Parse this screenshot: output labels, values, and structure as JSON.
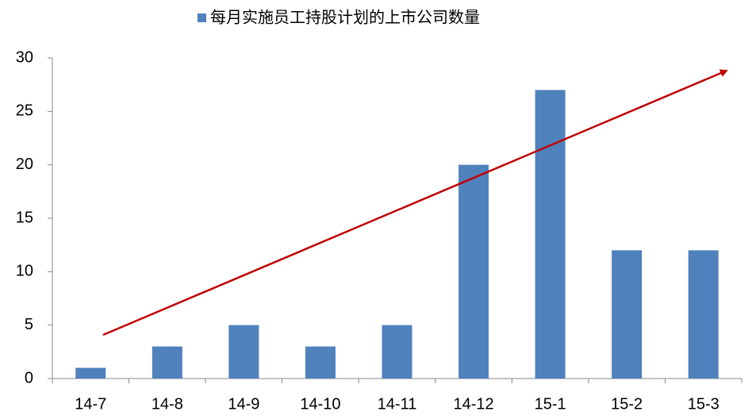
{
  "chart_data": {
    "type": "bar",
    "categories": [
      "14-7",
      "14-8",
      "14-9",
      "14-10",
      "14-11",
      "14-12",
      "15-1",
      "15-2",
      "15-3"
    ],
    "series": [
      {
        "name": "每月实施员工持股计划的上市公司数量",
        "color": "#4f81bd",
        "values": [
          1,
          3,
          5,
          3,
          5,
          20,
          27,
          12,
          12
        ]
      }
    ],
    "ylim": [
      0,
      30
    ],
    "yticks": [
      0,
      5,
      10,
      15,
      20,
      25,
      30
    ],
    "legend": "top"
  }
}
